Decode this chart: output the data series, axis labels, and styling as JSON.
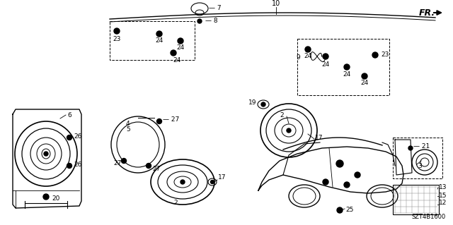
{
  "bg_color": "#ffffff",
  "part_number": "SZT4B1600",
  "fig_width": 6.4,
  "fig_height": 3.19,
  "dpi": 100
}
